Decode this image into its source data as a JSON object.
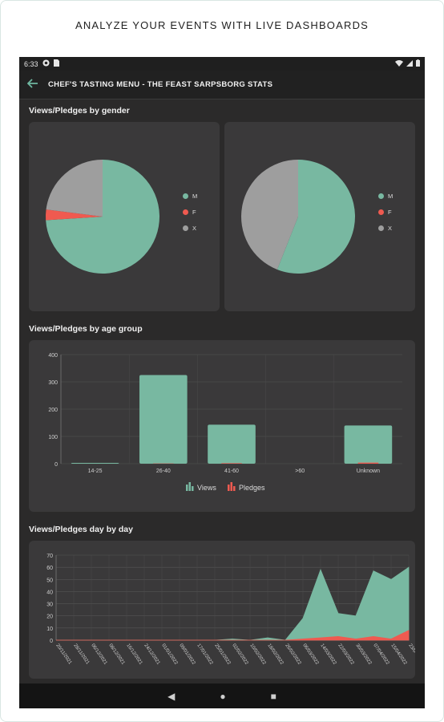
{
  "banner": {
    "headline": "ANALYZE YOUR EVENTS WITH LIVE DASHBOARDS"
  },
  "status_bar": {
    "time": "6:33"
  },
  "app_bar": {
    "title": "CHEF'S TASTING MENU - THE FEAST SARPSBORG STATS"
  },
  "sections": {
    "gender": "Views/Pledges by gender",
    "age": "Views/Pledges by age group",
    "daily": "Views/Pledges day by day"
  },
  "colors": {
    "views": "#78b8a1",
    "pledges": "#ef5a50",
    "x": "#9e9e9e"
  },
  "chart_data": [
    {
      "type": "pie",
      "title": "Views/Pledges by gender",
      "labels": [
        "M",
        "F",
        "X"
      ],
      "values": [
        74,
        3,
        23
      ]
    },
    {
      "type": "pie",
      "title": "Views/Pledges by gender",
      "labels": [
        "M",
        "F",
        "X"
      ],
      "values": [
        56,
        0,
        44
      ]
    },
    {
      "type": "bar",
      "title": "Views/Pledges by age group",
      "categories": [
        "14-25",
        "26-40",
        "41-60",
        ">60",
        "Unknown"
      ],
      "series": [
        {
          "name": "Views",
          "values": [
            3,
            325,
            143,
            0,
            140
          ]
        },
        {
          "name": "Pledges",
          "values": [
            0,
            1,
            2,
            0,
            4
          ]
        }
      ],
      "ylim": [
        0,
        400
      ],
      "yticks": [
        0,
        100,
        200,
        300,
        400
      ],
      "grid": true,
      "legend": "bottom"
    },
    {
      "type": "area",
      "title": "Views/Pledges day by day",
      "x": [
        "20/11/2021",
        "28/11/2021",
        "06/12/2021",
        "08/12/2021",
        "16/12/2021",
        "24/12/2021",
        "01/01/2022",
        "09/01/2022",
        "17/01/2022",
        "25/01/2022",
        "02/02/2022",
        "10/02/2022",
        "18/02/2022",
        "26/02/2022",
        "06/03/2022",
        "14/03/2022",
        "22/03/2022",
        "30/03/2022",
        "07/04/2022",
        "15/04/2022",
        "23/04/2022"
      ],
      "series": [
        {
          "name": "Views",
          "values": [
            0,
            0,
            0,
            0,
            0,
            0,
            0,
            0,
            0,
            0,
            1,
            0,
            2,
            0,
            18,
            58,
            22,
            20,
            57,
            50,
            60
          ]
        },
        {
          "name": "Pledges",
          "values": [
            0,
            0,
            0,
            0,
            0,
            0,
            0,
            0,
            0,
            0,
            0,
            0,
            0,
            0,
            1,
            2,
            3,
            1,
            3,
            1,
            8
          ]
        }
      ],
      "ylim": [
        0,
        70
      ],
      "yticks": [
        0,
        10,
        20,
        30,
        40,
        50,
        60,
        70
      ],
      "grid": true
    }
  ]
}
